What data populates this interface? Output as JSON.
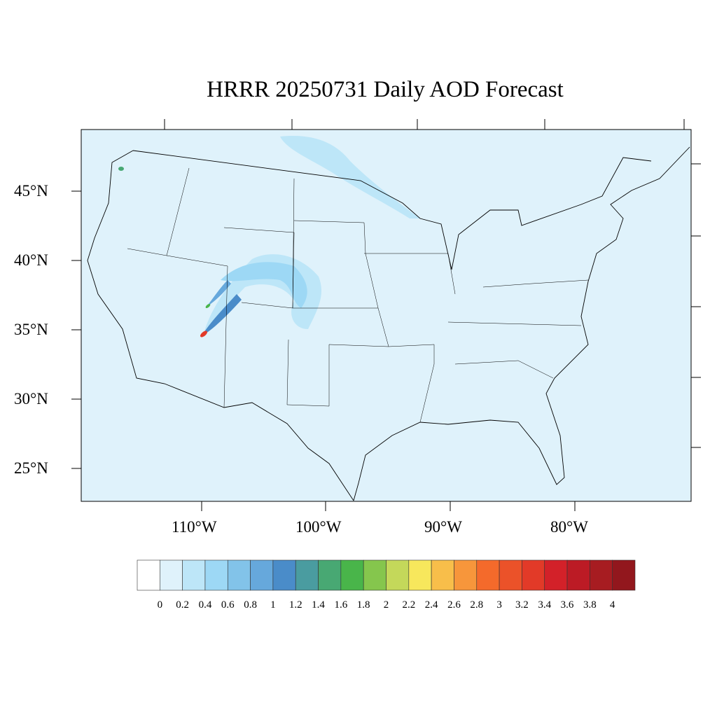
{
  "title": "HRRR 20250731 Daily AOD Forecast",
  "map": {
    "projection": "lambert-conformal",
    "region": "CONUS",
    "background_color": "#dff2fb",
    "lon_labels": [
      "110°W",
      "100°W",
      "90°W",
      "80°W"
    ],
    "lat_labels": [
      "45°N",
      "40°N",
      "35°N",
      "30°N",
      "25°N"
    ],
    "features": [
      "smoke plume over Utah/Colorado/Wyoming/Nebraska",
      "smoke plume over northern Minnesota/Great Lakes",
      "small hotspot in Washington"
    ]
  },
  "colorbar": {
    "labels": [
      "0",
      "0.2",
      "0.4",
      "0.6",
      "0.8",
      "1",
      "1.2",
      "1.4",
      "1.6",
      "1.8",
      "2",
      "2.2",
      "2.4",
      "2.6",
      "2.8",
      "3",
      "3.2",
      "3.4",
      "3.6",
      "3.8",
      "4"
    ],
    "colors": [
      "#ffffff",
      "#dff2fb",
      "#bde6f8",
      "#9dd8f5",
      "#82c3e9",
      "#66a8dc",
      "#4a8cc9",
      "#4a9ca0",
      "#48a873",
      "#49b54a",
      "#85c64d",
      "#c4d85a",
      "#f7e75c",
      "#f8be4a",
      "#f7963b",
      "#f46a2b",
      "#eb5229",
      "#e23a28",
      "#d32129",
      "#bc1b25",
      "#a71c21",
      "#92171d"
    ]
  }
}
